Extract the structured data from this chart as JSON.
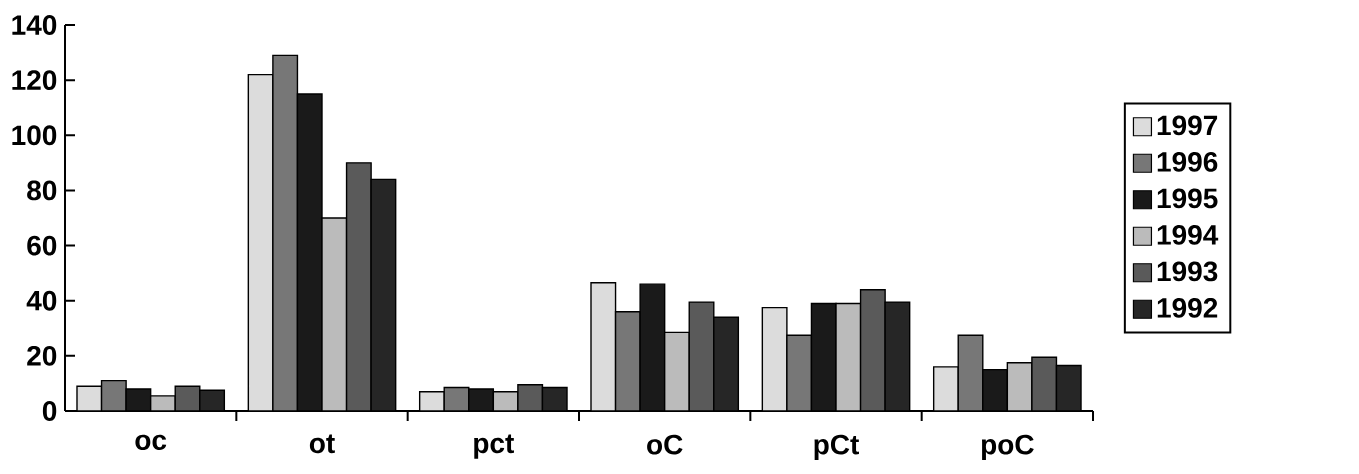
{
  "chart_data": {
    "type": "bar",
    "categories": [
      "oc",
      "ot",
      "pct",
      "oC",
      "pCt",
      "poC"
    ],
    "series": [
      {
        "name": "1997",
        "color": "#dcdcdc",
        "values": [
          9,
          122,
          7,
          46.5,
          37.5,
          16
        ]
      },
      {
        "name": "1996",
        "color": "#777777",
        "values": [
          11,
          129,
          8.5,
          36,
          27.5,
          27.5
        ]
      },
      {
        "name": "1995",
        "color": "#1a1a1a",
        "values": [
          8,
          115,
          8,
          46,
          39,
          15
        ]
      },
      {
        "name": "1994",
        "color": "#bbbbbb",
        "values": [
          5.5,
          70,
          7,
          28.5,
          39,
          17.5
        ]
      },
      {
        "name": "1993",
        "color": "#5a5a5a",
        "values": [
          9,
          90,
          9.5,
          39.5,
          44,
          19.5
        ]
      },
      {
        "name": "1992",
        "color": "#262626",
        "values": [
          7.5,
          84,
          8.5,
          34,
          39.5,
          16.5
        ]
      }
    ],
    "ylim": [
      0,
      140
    ],
    "yticks": [
      0,
      20,
      40,
      60,
      80,
      100,
      120,
      140
    ],
    "grid": false,
    "legend": "right"
  }
}
